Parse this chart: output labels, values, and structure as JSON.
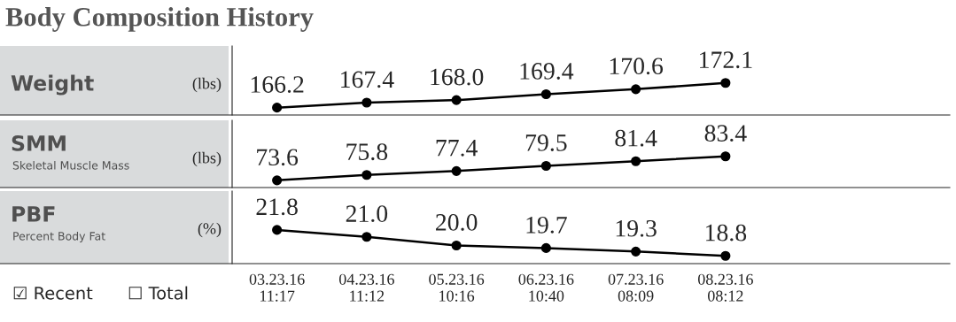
{
  "chart_data": [
    {
      "type": "line",
      "ylabel": "(lbs)",
      "annotations": [
        "Body Composition History",
        "Weight"
      ],
      "categories": [
        null,
        null,
        null,
        null,
        null,
        null,
        null,
        null
      ],
      "series": [
        {
          "color": "#000000",
          "values": [
            166.2,
            167.4,
            168.0,
            169.4,
            170.6,
            172.1,
            null,
            null
          ],
          "value_labels": [
            "166.2",
            "167.4",
            "168.0",
            "169.4",
            "170.6",
            "172.1",
            null,
            null
          ]
        }
      ],
      "marker": "circle",
      "line_style": "solid",
      "tick_labels": false
    },
    {
      "type": "line",
      "ylabel": "(lbs)",
      "annotations": [
        "SMM",
        "Skeletal Muscle Mass"
      ],
      "categories": [
        null,
        null,
        null,
        null,
        null,
        null,
        null,
        null
      ],
      "series": [
        {
          "color": "#000000",
          "values": [
            73.6,
            75.8,
            77.4,
            79.5,
            81.4,
            83.4,
            null,
            null
          ],
          "value_labels": [
            "73.6",
            "75.8",
            "77.4",
            "79.5",
            "81.4",
            "83.4",
            null,
            null
          ]
        }
      ],
      "marker": "circle",
      "line_style": "solid",
      "tick_labels": false
    },
    {
      "type": "line",
      "ylabel": "(%)",
      "annotations": [
        "PBF",
        "Percent Body Fat",
        "☑ Recent",
        "☐ Total"
      ],
      "categories": [
        "03.23.16\n11:17",
        "04.23.16\n11:12",
        "05.23.16\n10:16",
        "06.23.16\n10:40",
        "07.23.16\n08:09",
        "08.23.16\n08:12",
        null,
        null
      ],
      "series": [
        {
          "color": "#000000",
          "values": [
            21.8,
            21.0,
            20.0,
            19.7,
            19.3,
            18.8,
            null,
            null
          ],
          "value_labels": [
            "21.8",
            "21.0",
            "20.0",
            "19.7",
            "19.3",
            "18.8",
            null,
            null
          ]
        }
      ],
      "marker": "circle",
      "line_style": "solid",
      "tick_labels": "x"
    }
  ]
}
